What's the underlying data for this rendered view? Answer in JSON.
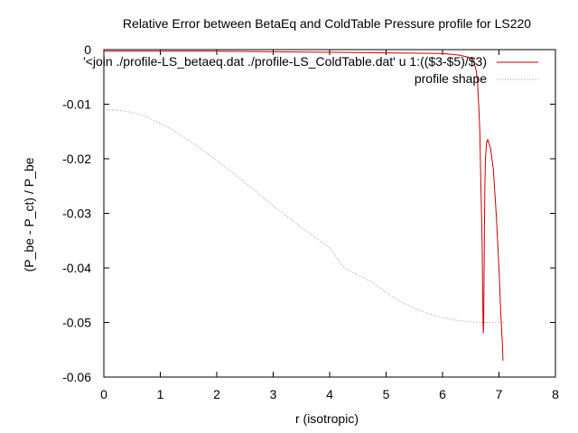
{
  "chart_data": {
    "type": "line",
    "title": "Relative Error between BetaEq and ColdTable Pressure profile for LS220",
    "xlabel": "r (isotropic)",
    "ylabel": "(P_be - P_ct) / P_be",
    "xlim": [
      0,
      8
    ],
    "ylim": [
      -0.06,
      0
    ],
    "x_ticks": [
      0,
      1,
      2,
      3,
      4,
      5,
      6,
      7,
      8
    ],
    "y_ticks": [
      0,
      -0.01,
      -0.02,
      -0.03,
      -0.04,
      -0.05,
      -0.06
    ],
    "x_tick_labels": [
      "0",
      "1",
      "2",
      "3",
      "4",
      "5",
      "6",
      "7",
      "8"
    ],
    "y_tick_labels": [
      "0",
      "-0.01",
      "-0.02",
      "-0.03",
      "-0.04",
      "-0.05",
      "-0.06"
    ],
    "grid": false,
    "legend_position": "top-right",
    "series": [
      {
        "name": "'<join ./profile-LS_betaeq.dat ./profile-LS_ColdTable.dat' u 1:(($3-$5)/$3)",
        "color": "#cc0000",
        "style": "solid",
        "x": [
          0,
          1,
          2,
          3,
          4,
          5,
          6.0,
          6.3,
          6.5,
          6.55,
          6.6,
          6.62,
          6.64,
          6.66,
          6.68,
          6.7,
          6.715,
          6.722,
          6.73,
          6.74,
          6.75,
          6.76,
          6.78,
          6.8,
          6.85,
          6.9,
          6.95,
          7.0,
          7.03,
          7.06,
          7.07
        ],
        "y": [
          -0.0003,
          -0.0003,
          -0.0003,
          -0.0004,
          -0.0005,
          -0.0006,
          -0.0007,
          -0.001,
          -0.0015,
          -0.002,
          -0.004,
          -0.006,
          -0.01,
          -0.015,
          -0.025,
          -0.035,
          -0.048,
          -0.052,
          -0.05,
          -0.035,
          -0.025,
          -0.02,
          -0.017,
          -0.0165,
          -0.018,
          -0.022,
          -0.03,
          -0.04,
          -0.048,
          -0.054,
          -0.057
        ]
      },
      {
        "name": "profile shape",
        "color": "#999999",
        "style": "dotted",
        "x": [
          0,
          0.25,
          0.5,
          0.75,
          1,
          1.25,
          1.5,
          1.75,
          2,
          2.25,
          2.5,
          2.75,
          3,
          3.25,
          3.5,
          3.75,
          4,
          4.25,
          4.5,
          4.75,
          5,
          5.25,
          5.5,
          5.75,
          6,
          6.25,
          6.5,
          6.75,
          7.0,
          7.1
        ],
        "y": [
          -0.011,
          -0.0111,
          -0.0115,
          -0.0123,
          -0.0135,
          -0.0149,
          -0.0166,
          -0.0184,
          -0.0203,
          -0.0223,
          -0.0244,
          -0.0265,
          -0.0286,
          -0.0306,
          -0.0326,
          -0.0345,
          -0.0363,
          -0.0399,
          -0.0413,
          -0.0426,
          -0.0445,
          -0.0461,
          -0.0474,
          -0.0484,
          -0.0491,
          -0.0496,
          -0.0499,
          -0.05,
          -0.05,
          -0.05
        ]
      }
    ]
  }
}
